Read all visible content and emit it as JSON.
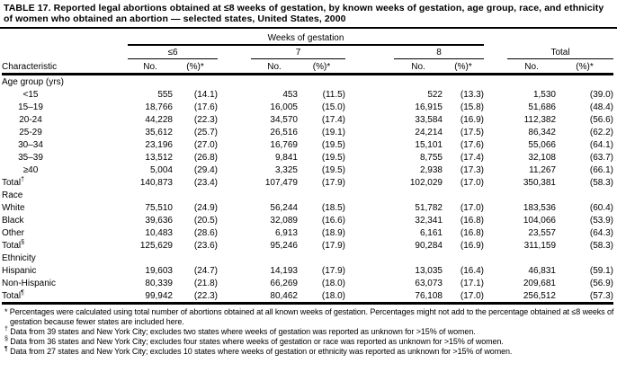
{
  "colors": {
    "text": "#000000",
    "background": "#ffffff",
    "rule": "#000000"
  },
  "title": "TABLE 17. Reported legal abortions obtained at ≤8 weeks of gestation, by known weeks of gestation, age group, race, and ethnicity of women who obtained an abortion — selected states, United States, 2000",
  "table": {
    "group_header": "Weeks of gestation",
    "char_header": "Characteristic",
    "col_groups": [
      {
        "label": "≤6"
      },
      {
        "label": "7"
      },
      {
        "label": "8"
      },
      {
        "label": "Total"
      }
    ],
    "sub": {
      "no": "No.",
      "pct": "(%)*"
    },
    "sections": [
      {
        "label": "Age group (yrs)",
        "rows": [
          {
            "label": "<15",
            "center": true,
            "cells": [
              "555",
              "(14.1)",
              "453",
              "(11.5)",
              "522",
              "(13.3)",
              "1,530",
              "(39.0)"
            ]
          },
          {
            "label": "15–19",
            "center": true,
            "cells": [
              "18,766",
              "(17.6)",
              "16,005",
              "(15.0)",
              "16,915",
              "(15.8)",
              "51,686",
              "(48.4)"
            ]
          },
          {
            "label": "20-24",
            "center": true,
            "cells": [
              "44,228",
              "(22.3)",
              "34,570",
              "(17.4)",
              "33,584",
              "(16.9)",
              "112,382",
              "(56.6)"
            ]
          },
          {
            "label": "25-29",
            "center": true,
            "cells": [
              "35,612",
              "(25.7)",
              "26,516",
              "(19.1)",
              "24,214",
              "(17.5)",
              "86,342",
              "(62.2)"
            ]
          },
          {
            "label": "30–34",
            "center": true,
            "cells": [
              "23,196",
              "(27.0)",
              "16,769",
              "(19.5)",
              "15,101",
              "(17.6)",
              "55,066",
              "(64.1)"
            ]
          },
          {
            "label": "35–39",
            "center": true,
            "cells": [
              "13,512",
              "(26.8)",
              "9,841",
              "(19.5)",
              "8,755",
              "(17.4)",
              "32,108",
              "(63.7)"
            ]
          },
          {
            "label": "≥40",
            "center": true,
            "cells": [
              "5,004",
              "(29.4)",
              "3,325",
              "(19.5)",
              "2,938",
              "(17.3)",
              "11,267",
              "(66.1)"
            ]
          },
          {
            "label": "Total",
            "sup": "†",
            "center": false,
            "cells": [
              "140,873",
              "(23.4)",
              "107,479",
              "(17.9)",
              "102,029",
              "(17.0)",
              "350,381",
              "(58.3)"
            ]
          }
        ]
      },
      {
        "label": "Race",
        "rows": [
          {
            "label": "White",
            "center": false,
            "cells": [
              "75,510",
              "(24.9)",
              "56,244",
              "(18.5)",
              "51,782",
              "(17.0)",
              "183,536",
              "(60.4)"
            ]
          },
          {
            "label": "Black",
            "center": false,
            "cells": [
              "39,636",
              "(20.5)",
              "32,089",
              "(16.6)",
              "32,341",
              "(16.8)",
              "104,066",
              "(53.9)"
            ]
          },
          {
            "label": "Other",
            "center": false,
            "cells": [
              "10,483",
              "(28.6)",
              "6,913",
              "(18.9)",
              "6,161",
              "(16.8)",
              "23,557",
              "(64.3)"
            ]
          },
          {
            "label": "Total",
            "sup": "§",
            "center": false,
            "cells": [
              "125,629",
              "(23.6)",
              "95,246",
              "(17.9)",
              "90,284",
              "(16.9)",
              "311,159",
              "(58.3)"
            ]
          }
        ]
      },
      {
        "label": "Ethnicity",
        "rows": [
          {
            "label": "Hispanic",
            "center": false,
            "cells": [
              "19,603",
              "(24.7)",
              "14,193",
              "(17.9)",
              "13,035",
              "(16.4)",
              "46,831",
              "(59.1)"
            ]
          },
          {
            "label": "Non-Hispanic",
            "center": false,
            "cells": [
              "80,339",
              "(21.8)",
              "66,269",
              "(18.0)",
              "63,073",
              "(17.1)",
              "209,681",
              "(56.9)"
            ]
          },
          {
            "label": "Total",
            "sup": "¶",
            "center": false,
            "cells": [
              "99,942",
              "(22.3)",
              "80,462",
              "(18.0)",
              "76,108",
              "(17.0)",
              "256,512",
              "(57.3)"
            ]
          }
        ]
      }
    ]
  },
  "footnotes": [
    {
      "marker": "*",
      "superscript": false,
      "text": "Percentages were calculated using total number of abortions obtained at all known weeks of gestation. Percentages might not add to the percentage obtained at ≤8 weeks of gestation because fewer states are included here."
    },
    {
      "marker": "†",
      "superscript": true,
      "text": "Data from 39 states and New York City; excludes two states where weeks of gestation was reported as unknown for >15% of women."
    },
    {
      "marker": "§",
      "superscript": true,
      "text": "Data from 36 states and New York City; excludes four states where weeks of gestation or race was reported as unknown for >15% of women."
    },
    {
      "marker": "¶",
      "superscript": true,
      "text": "Data from 27 states and New York City; excludes 10 states where weeks of gestation or ethnicity was reported as unknown for >15% of women."
    }
  ]
}
